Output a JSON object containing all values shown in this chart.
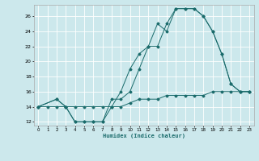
{
  "title": "",
  "xlabel": "Humidex (Indice chaleur)",
  "background_color": "#cce8ec",
  "grid_color": "#ffffff",
  "line_color": "#1a6b6b",
  "xlim": [
    -0.5,
    23.5
  ],
  "ylim": [
    11.5,
    27.5
  ],
  "xticks": [
    0,
    1,
    2,
    3,
    4,
    5,
    6,
    7,
    8,
    9,
    10,
    11,
    12,
    13,
    14,
    15,
    16,
    17,
    18,
    19,
    20,
    21,
    22,
    23
  ],
  "yticks": [
    12,
    14,
    16,
    18,
    20,
    22,
    24,
    26
  ],
  "series": [
    {
      "x": [
        0,
        1,
        2,
        3,
        4,
        5,
        6,
        7,
        8,
        9,
        10,
        11,
        12,
        13,
        14,
        15,
        16,
        17,
        18,
        19,
        20,
        21,
        22,
        23
      ],
      "y": [
        14,
        14,
        14,
        14,
        14,
        14,
        14,
        14,
        14,
        14,
        14.5,
        15,
        15,
        15,
        15.5,
        15.5,
        15.5,
        15.5,
        15.5,
        16,
        16,
        16,
        16,
        16
      ]
    },
    {
      "x": [
        0,
        2,
        3,
        4,
        5,
        6,
        7,
        8,
        9,
        10,
        11,
        12,
        13,
        14,
        15,
        16,
        17,
        18,
        19,
        20,
        21,
        22,
        23
      ],
      "y": [
        14,
        15,
        14,
        12,
        12,
        12,
        12,
        15,
        15,
        16,
        19,
        22,
        22,
        25,
        27,
        27,
        27,
        26,
        24,
        21,
        17,
        16,
        16
      ]
    },
    {
      "x": [
        0,
        2,
        3,
        4,
        5,
        6,
        7,
        8,
        9,
        10,
        11,
        12,
        13,
        14,
        15,
        16,
        17,
        18,
        19,
        20,
        21,
        22,
        23
      ],
      "y": [
        14,
        15,
        14,
        12,
        12,
        12,
        12,
        14,
        16,
        19,
        21,
        22,
        25,
        24,
        27,
        27,
        27,
        26,
        24,
        21,
        17,
        16,
        16
      ]
    }
  ]
}
